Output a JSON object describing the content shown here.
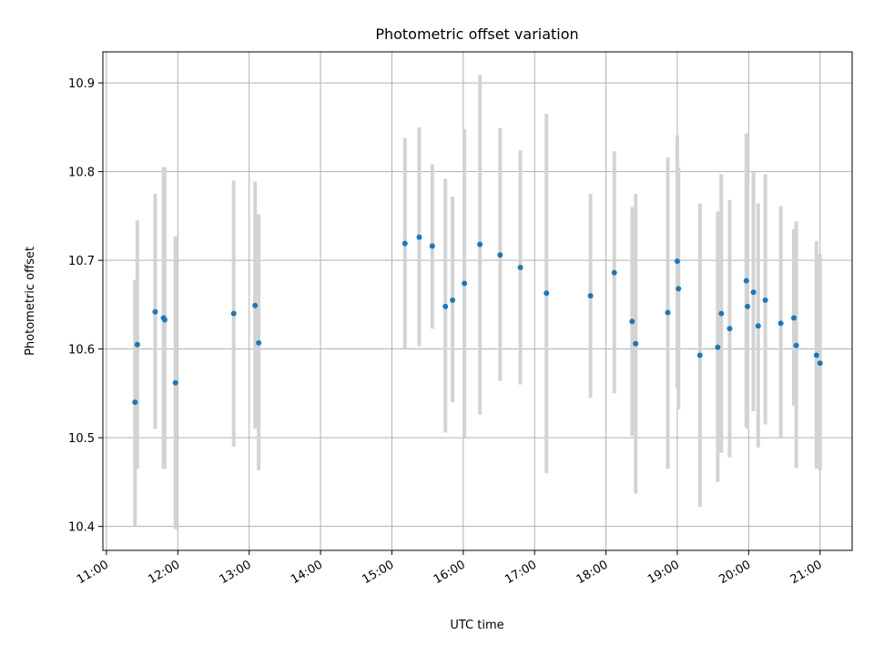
{
  "chart_data": {
    "type": "scatter",
    "title": "Photometric offset variation",
    "xlabel": "UTC time",
    "ylabel": "Photometric offset",
    "x_unit": "hours UTC",
    "xlim": [
      "10:57",
      "21:27"
    ],
    "ylim": [
      10.373,
      10.935
    ],
    "grid": true,
    "legend": "none",
    "colors": {
      "point": "#1f77b4",
      "errorbar": "#d3d3d3",
      "grid": "#b0b0b0"
    },
    "x_ticks": [
      "11:00",
      "12:00",
      "13:00",
      "14:00",
      "15:00",
      "16:00",
      "17:00",
      "18:00",
      "19:00",
      "20:00",
      "21:00"
    ],
    "y_ticks": [
      "10.4",
      "10.5",
      "10.6",
      "10.7",
      "10.8",
      "10.9"
    ],
    "points": [
      {
        "x": "11:24",
        "y": 10.54,
        "yerr_low": 10.4,
        "yerr_high": 10.678
      },
      {
        "x": "11:26",
        "y": 10.605,
        "yerr_low": 10.465,
        "yerr_high": 10.745
      },
      {
        "x": "11:41",
        "y": 10.642,
        "yerr_low": 10.51,
        "yerr_high": 10.775
      },
      {
        "x": "11:48",
        "y": 10.635,
        "yerr_low": 10.465,
        "yerr_high": 10.805
      },
      {
        "x": "11:49",
        "y": 10.633,
        "yerr_low": 10.465,
        "yerr_high": 10.805
      },
      {
        "x": "11:58",
        "y": 10.562,
        "yerr_low": 10.397,
        "yerr_high": 10.727
      },
      {
        "x": "12:47",
        "y": 10.64,
        "yerr_low": 10.49,
        "yerr_high": 10.79
      },
      {
        "x": "13:05",
        "y": 10.649,
        "yerr_low": 10.51,
        "yerr_high": 10.789
      },
      {
        "x": "13:08",
        "y": 10.607,
        "yerr_low": 10.463,
        "yerr_high": 10.752
      },
      {
        "x": "15:11",
        "y": 10.719,
        "yerr_low": 10.6,
        "yerr_high": 10.838
      },
      {
        "x": "15:23",
        "y": 10.726,
        "yerr_low": 10.603,
        "yerr_high": 10.85
      },
      {
        "x": "15:34",
        "y": 10.716,
        "yerr_low": 10.623,
        "yerr_high": 10.808
      },
      {
        "x": "15:45",
        "y": 10.648,
        "yerr_low": 10.506,
        "yerr_high": 10.792
      },
      {
        "x": "15:51",
        "y": 10.655,
        "yerr_low": 10.54,
        "yerr_high": 10.772
      },
      {
        "x": "16:01",
        "y": 10.674,
        "yerr_low": 10.5,
        "yerr_high": 10.848
      },
      {
        "x": "16:14",
        "y": 10.718,
        "yerr_low": 10.526,
        "yerr_high": 10.909
      },
      {
        "x": "16:31",
        "y": 10.706,
        "yerr_low": 10.564,
        "yerr_high": 10.849
      },
      {
        "x": "16:48",
        "y": 10.692,
        "yerr_low": 10.56,
        "yerr_high": 10.824
      },
      {
        "x": "17:10",
        "y": 10.663,
        "yerr_low": 10.46,
        "yerr_high": 10.865
      },
      {
        "x": "17:47",
        "y": 10.66,
        "yerr_low": 10.545,
        "yerr_high": 10.775
      },
      {
        "x": "18:07",
        "y": 10.686,
        "yerr_low": 10.55,
        "yerr_high": 10.823
      },
      {
        "x": "18:22",
        "y": 10.631,
        "yerr_low": 10.502,
        "yerr_high": 10.76
      },
      {
        "x": "18:25",
        "y": 10.606,
        "yerr_low": 10.437,
        "yerr_high": 10.775
      },
      {
        "x": "18:52",
        "y": 10.641,
        "yerr_low": 10.465,
        "yerr_high": 10.816
      },
      {
        "x": "19:00",
        "y": 10.699,
        "yerr_low": 10.556,
        "yerr_high": 10.841
      },
      {
        "x": "19:01",
        "y": 10.668,
        "yerr_low": 10.532,
        "yerr_high": 10.805
      },
      {
        "x": "19:19",
        "y": 10.593,
        "yerr_low": 10.422,
        "yerr_high": 10.764
      },
      {
        "x": "19:34",
        "y": 10.602,
        "yerr_low": 10.45,
        "yerr_high": 10.755
      },
      {
        "x": "19:37",
        "y": 10.64,
        "yerr_low": 10.483,
        "yerr_high": 10.797
      },
      {
        "x": "19:44",
        "y": 10.623,
        "yerr_low": 10.478,
        "yerr_high": 10.768
      },
      {
        "x": "19:58",
        "y": 10.677,
        "yerr_low": 10.512,
        "yerr_high": 10.843
      },
      {
        "x": "19:59",
        "y": 10.648,
        "yerr_low": 10.51,
        "yerr_high": 10.785
      },
      {
        "x": "20:04",
        "y": 10.664,
        "yerr_low": 10.53,
        "yerr_high": 10.8
      },
      {
        "x": "20:08",
        "y": 10.626,
        "yerr_low": 10.489,
        "yerr_high": 10.764
      },
      {
        "x": "20:14",
        "y": 10.655,
        "yerr_low": 10.515,
        "yerr_high": 10.797
      },
      {
        "x": "20:27",
        "y": 10.629,
        "yerr_low": 10.5,
        "yerr_high": 10.761
      },
      {
        "x": "20:38",
        "y": 10.635,
        "yerr_low": 10.536,
        "yerr_high": 10.735
      },
      {
        "x": "20:40",
        "y": 10.604,
        "yerr_low": 10.466,
        "yerr_high": 10.744
      },
      {
        "x": "20:57",
        "y": 10.593,
        "yerr_low": 10.465,
        "yerr_high": 10.722
      },
      {
        "x": "21:00",
        "y": 10.584,
        "yerr_low": 10.463,
        "yerr_high": 10.707
      }
    ]
  }
}
